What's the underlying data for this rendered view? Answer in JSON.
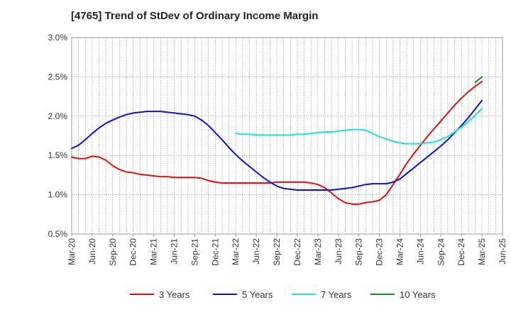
{
  "chart_data": {
    "type": "line",
    "title": "[4765]  Trend of StDev of Ordinary Income Margin",
    "xlabel": "",
    "ylabel": "",
    "x_ticks": [
      "Mar-20",
      "Jun-20",
      "Sep-20",
      "Dec-20",
      "Mar-21",
      "Jun-21",
      "Sep-21",
      "Dec-21",
      "Mar-22",
      "Jun-22",
      "Sep-22",
      "Dec-22",
      "Mar-23",
      "Jun-23",
      "Sep-23",
      "Dec-23",
      "Mar-24",
      "Jun-24",
      "Sep-24",
      "Dec-24",
      "Mar-25",
      "Jun-25"
    ],
    "y_ticks": [
      "0.5%",
      "1.0%",
      "1.5%",
      "2.0%",
      "2.5%",
      "3.0%"
    ],
    "y_tick_values": [
      0.5,
      1.0,
      1.5,
      2.0,
      2.5,
      3.0
    ],
    "ylim": [
      0.5,
      3.0
    ],
    "grid": true,
    "legend_position": "bottom",
    "series": [
      {
        "name": "3 Years",
        "color": "#dd1111",
        "points": [
          [
            "Mar-20",
            1.48
          ],
          [
            "Apr-20",
            1.46
          ],
          [
            "May-20",
            1.46
          ],
          [
            "Jun-20",
            1.49
          ],
          [
            "Jul-20",
            1.48
          ],
          [
            "Aug-20",
            1.44
          ],
          [
            "Sep-20",
            1.37
          ],
          [
            "Oct-20",
            1.32
          ],
          [
            "Nov-20",
            1.29
          ],
          [
            "Dec-20",
            1.28
          ],
          [
            "Jan-21",
            1.26
          ],
          [
            "Feb-21",
            1.25
          ],
          [
            "Mar-21",
            1.24
          ],
          [
            "Apr-21",
            1.23
          ],
          [
            "May-21",
            1.23
          ],
          [
            "Jun-21",
            1.22
          ],
          [
            "Jul-21",
            1.22
          ],
          [
            "Aug-21",
            1.22
          ],
          [
            "Sep-21",
            1.22
          ],
          [
            "Oct-21",
            1.21
          ],
          [
            "Nov-21",
            1.18
          ],
          [
            "Dec-21",
            1.16
          ],
          [
            "Jan-22",
            1.15
          ],
          [
            "Feb-22",
            1.15
          ],
          [
            "Mar-22",
            1.15
          ],
          [
            "Apr-22",
            1.15
          ],
          [
            "May-22",
            1.15
          ],
          [
            "Jun-22",
            1.15
          ],
          [
            "Jul-22",
            1.15
          ],
          [
            "Aug-22",
            1.15
          ],
          [
            "Sep-22",
            1.16
          ],
          [
            "Oct-22",
            1.16
          ],
          [
            "Nov-22",
            1.16
          ],
          [
            "Dec-22",
            1.16
          ],
          [
            "Jan-23",
            1.16
          ],
          [
            "Feb-23",
            1.15
          ],
          [
            "Mar-23",
            1.13
          ],
          [
            "Apr-23",
            1.09
          ],
          [
            "May-23",
            1.02
          ],
          [
            "Jun-23",
            0.95
          ],
          [
            "Jul-23",
            0.9
          ],
          [
            "Aug-23",
            0.88
          ],
          [
            "Sep-23",
            0.88
          ],
          [
            "Oct-23",
            0.9
          ],
          [
            "Nov-23",
            0.91
          ],
          [
            "Dec-23",
            0.93
          ],
          [
            "Jan-24",
            1.0
          ],
          [
            "Feb-24",
            1.13
          ],
          [
            "Mar-24",
            1.26
          ],
          [
            "Apr-24",
            1.4
          ],
          [
            "May-24",
            1.52
          ],
          [
            "Jun-24",
            1.63
          ],
          [
            "Jul-24",
            1.74
          ],
          [
            "Aug-24",
            1.84
          ],
          [
            "Sep-24",
            1.94
          ],
          [
            "Oct-24",
            2.04
          ],
          [
            "Nov-24",
            2.14
          ],
          [
            "Dec-24",
            2.23
          ],
          [
            "Jan-25",
            2.31
          ],
          [
            "Feb-25",
            2.38
          ],
          [
            "Mar-25",
            2.44
          ]
        ]
      },
      {
        "name": "5 Years",
        "color": "#1111cc",
        "points": [
          [
            "Mar-20",
            1.59
          ],
          [
            "Apr-20",
            1.63
          ],
          [
            "May-20",
            1.7
          ],
          [
            "Jun-20",
            1.78
          ],
          [
            "Jul-20",
            1.85
          ],
          [
            "Aug-20",
            1.91
          ],
          [
            "Sep-20",
            1.95
          ],
          [
            "Oct-20",
            1.99
          ],
          [
            "Nov-20",
            2.02
          ],
          [
            "Dec-20",
            2.04
          ],
          [
            "Jan-21",
            2.05
          ],
          [
            "Feb-21",
            2.06
          ],
          [
            "Mar-21",
            2.06
          ],
          [
            "Apr-21",
            2.06
          ],
          [
            "May-21",
            2.05
          ],
          [
            "Jun-21",
            2.04
          ],
          [
            "Jul-21",
            2.03
          ],
          [
            "Aug-21",
            2.02
          ],
          [
            "Sep-21",
            2.0
          ],
          [
            "Oct-21",
            1.95
          ],
          [
            "Nov-21",
            1.88
          ],
          [
            "Dec-21",
            1.79
          ],
          [
            "Jan-22",
            1.7
          ],
          [
            "Feb-22",
            1.6
          ],
          [
            "Mar-22",
            1.51
          ],
          [
            "Apr-22",
            1.43
          ],
          [
            "May-22",
            1.36
          ],
          [
            "Jun-22",
            1.29
          ],
          [
            "Jul-22",
            1.22
          ],
          [
            "Aug-22",
            1.16
          ],
          [
            "Sep-22",
            1.11
          ],
          [
            "Oct-22",
            1.08
          ],
          [
            "Nov-22",
            1.07
          ],
          [
            "Dec-22",
            1.06
          ],
          [
            "Jan-23",
            1.06
          ],
          [
            "Feb-23",
            1.06
          ],
          [
            "Mar-23",
            1.06
          ],
          [
            "Apr-23",
            1.06
          ],
          [
            "May-23",
            1.06
          ],
          [
            "Jun-23",
            1.07
          ],
          [
            "Jul-23",
            1.08
          ],
          [
            "Aug-23",
            1.09
          ],
          [
            "Sep-23",
            1.11
          ],
          [
            "Oct-23",
            1.13
          ],
          [
            "Nov-23",
            1.14
          ],
          [
            "Dec-23",
            1.14
          ],
          [
            "Jan-24",
            1.14
          ],
          [
            "Feb-24",
            1.16
          ],
          [
            "Mar-24",
            1.2
          ],
          [
            "Apr-24",
            1.27
          ],
          [
            "May-24",
            1.34
          ],
          [
            "Jun-24",
            1.41
          ],
          [
            "Jul-24",
            1.48
          ],
          [
            "Aug-24",
            1.55
          ],
          [
            "Sep-24",
            1.62
          ],
          [
            "Oct-24",
            1.7
          ],
          [
            "Nov-24",
            1.79
          ],
          [
            "Dec-24",
            1.88
          ],
          [
            "Jan-25",
            1.98
          ],
          [
            "Feb-25",
            2.09
          ],
          [
            "Mar-25",
            2.2
          ]
        ]
      },
      {
        "name": "7 Years",
        "color": "#22dddd",
        "points": [
          [
            "Mar-22",
            1.78
          ],
          [
            "Apr-22",
            1.77
          ],
          [
            "May-22",
            1.77
          ],
          [
            "Jun-22",
            1.76
          ],
          [
            "Jul-22",
            1.76
          ],
          [
            "Aug-22",
            1.76
          ],
          [
            "Sep-22",
            1.76
          ],
          [
            "Oct-22",
            1.76
          ],
          [
            "Nov-22",
            1.76
          ],
          [
            "Dec-22",
            1.77
          ],
          [
            "Jan-23",
            1.77
          ],
          [
            "Feb-23",
            1.78
          ],
          [
            "Mar-23",
            1.79
          ],
          [
            "Apr-23",
            1.8
          ],
          [
            "May-23",
            1.8
          ],
          [
            "Jun-23",
            1.81
          ],
          [
            "Jul-23",
            1.82
          ],
          [
            "Aug-23",
            1.83
          ],
          [
            "Sep-23",
            1.83
          ],
          [
            "Oct-23",
            1.82
          ],
          [
            "Nov-23",
            1.78
          ],
          [
            "Dec-23",
            1.74
          ],
          [
            "Jan-24",
            1.71
          ],
          [
            "Feb-24",
            1.68
          ],
          [
            "Mar-24",
            1.66
          ],
          [
            "Apr-24",
            1.65
          ],
          [
            "May-24",
            1.65
          ],
          [
            "Jun-24",
            1.65
          ],
          [
            "Jul-24",
            1.66
          ],
          [
            "Aug-24",
            1.67
          ],
          [
            "Sep-24",
            1.7
          ],
          [
            "Oct-24",
            1.74
          ],
          [
            "Nov-24",
            1.8
          ],
          [
            "Dec-24",
            1.86
          ],
          [
            "Jan-25",
            1.93
          ],
          [
            "Feb-25",
            2.01
          ],
          [
            "Mar-25",
            2.1
          ]
        ]
      },
      {
        "name": "10 Years",
        "color": "#228822",
        "points": [
          [
            "Feb-25",
            2.43
          ],
          [
            "Mar-25",
            2.5
          ]
        ]
      }
    ]
  }
}
